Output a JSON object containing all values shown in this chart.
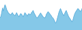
{
  "values": [
    40,
    42,
    55,
    70,
    60,
    72,
    80,
    75,
    65,
    60,
    55,
    52,
    50,
    48,
    52,
    55,
    50,
    48,
    45,
    50,
    55,
    50,
    45,
    42,
    48,
    52,
    50,
    46,
    42,
    48,
    55,
    52,
    48,
    44,
    50,
    52,
    48,
    50,
    55,
    58,
    62,
    55,
    50,
    45,
    40,
    38,
    42,
    46,
    50,
    54,
    50,
    46,
    42,
    40,
    38,
    42,
    50,
    54,
    58,
    55,
    52,
    48,
    45,
    40,
    38,
    34,
    28,
    22,
    25,
    35,
    45,
    55,
    62,
    68,
    62,
    55,
    50,
    45,
    52,
    58,
    62,
    55,
    48,
    42,
    38,
    34,
    30,
    26,
    32,
    42,
    50,
    56,
    60,
    64,
    68,
    66,
    62,
    58,
    62,
    68
  ],
  "line_color": "#4da6d8",
  "fill_color": "#85c8e8",
  "background_color": "#ffffff",
  "ylim_min": 0,
  "ylim_max": 95
}
